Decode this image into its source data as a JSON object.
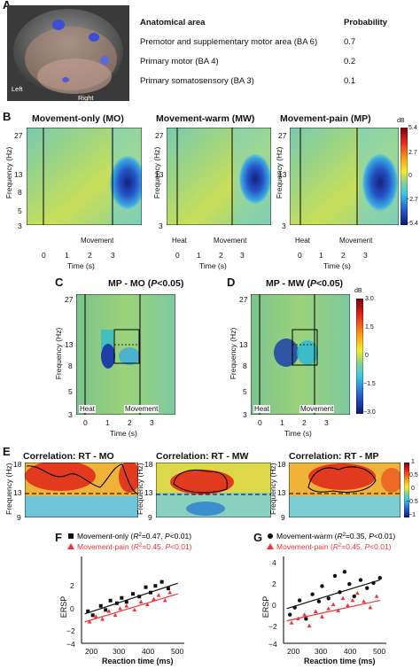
{
  "panel_a": {
    "label": "A",
    "brain_labels": {
      "left": "Left",
      "right": "Right"
    },
    "table": {
      "header_area": "Anatomical area",
      "header_prob": "Probability",
      "rows": [
        {
          "area": "Premotor and supplementary motor area (BA 6)",
          "prob": "0.7"
        },
        {
          "area": "Primary motor (BA 4)",
          "prob": "0.2"
        },
        {
          "area": "Primary somatosensory (BA 3)",
          "prob": "0.1"
        }
      ]
    }
  },
  "panel_b": {
    "label": "B",
    "titles": [
      "Movement-only (MO)",
      "Movement-warm (MW)",
      "Movement-pain (MP)"
    ],
    "ylabel": "Frequency (Hz)",
    "xlabel": "Time (s)",
    "yticks": [
      "27",
      "13",
      "8",
      "5",
      "3"
    ],
    "xticks": [
      "0",
      "1",
      "2",
      "3"
    ],
    "annotations": {
      "heat": "Heat",
      "movement": "Movement"
    },
    "colorbar": {
      "unit": "dB",
      "ticks": [
        "5.4",
        "2.7",
        "0",
        "−2.7",
        "−5.4"
      ]
    }
  },
  "panel_c": {
    "label": "C",
    "title_main": "MP - MO (",
    "title_p": "P",
    "title_rest": "<0.05)"
  },
  "panel_d": {
    "label": "D",
    "title_main": "MP - MW (",
    "title_p": "P",
    "title_rest": "<0.05)",
    "colorbar": {
      "unit": "dB",
      "ticks": [
        "3.0",
        "1.5",
        "0",
        "−1.5",
        "−3.0"
      ]
    }
  },
  "panel_e": {
    "label": "E",
    "titles": [
      "Correlation: RT - MO",
      "Correlation: RT - MW",
      "Correlation: RT - MP"
    ],
    "ylabel": "Frequency (Hz)",
    "yticks": [
      "18",
      "13",
      "9"
    ],
    "colorbar_ticks": [
      "1",
      "0.5",
      "0",
      "−0.5",
      "−1"
    ]
  },
  "panel_f": {
    "label": "F",
    "xlabel": "Reaction time (ms)",
    "ylabel": "ERSP",
    "xticks": [
      "200",
      "300",
      "400",
      "500"
    ],
    "yticks": [
      "2",
      "0",
      "−2",
      "−4"
    ]
  },
  "panel_g": {
    "label": "G",
    "xlabel": "Reaction time (ms)",
    "ylabel": "ERSP",
    "xticks": [
      "200",
      "300",
      "400",
      "500"
    ],
    "yticks": [
      "4",
      "2",
      "0",
      "−2",
      "−4"
    ]
  },
  "colors": {
    "black_series": "#111111",
    "red_series": "#e8383d",
    "hot": "#b3001b",
    "cold": "#1c2f8f"
  },
  "chart_data": [
    {
      "type": "scatter",
      "panel": "F",
      "xlabel": "Reaction time (ms)",
      "ylabel": "ERSP",
      "xlim": [
        180,
        500
      ],
      "ylim": [
        -4,
        2.5
      ],
      "series": [
        {
          "name": "Movement-only (R²=0.47, P<0.01)",
          "legend_main": "Movement-only (",
          "legend_stat": "R²=0.47, ",
          "legend_p": "P",
          "legend_tail": "<0.01)",
          "marker": "square",
          "color": "#111111",
          "x": [
            200,
            215,
            240,
            255,
            270,
            290,
            305,
            320,
            340,
            360,
            380,
            395,
            410,
            430,
            450
          ],
          "y": [
            -1.6,
            -1.9,
            -1.2,
            -1.5,
            -0.8,
            -1.0,
            -0.6,
            -0.9,
            -0.3,
            -0.5,
            0.2,
            -0.2,
            0.3,
            0.6,
            0.1
          ],
          "fit": [
            -1.8,
            0.5
          ]
        },
        {
          "name": "Movement-pain (R²=0.45, P<0.01)",
          "legend_main": "Movement-pain (",
          "legend_stat": "R²=0.45, ",
          "legend_p": "P",
          "legend_tail": "<0.01)",
          "marker": "triangle",
          "color": "#e8383d",
          "x": [
            205,
            225,
            245,
            265,
            285,
            300,
            320,
            345,
            365,
            385,
            405,
            420,
            440,
            455
          ],
          "y": [
            -2.4,
            -2.0,
            -2.2,
            -1.6,
            -1.9,
            -1.4,
            -1.2,
            -1.5,
            -0.9,
            -1.1,
            -0.7,
            -0.4,
            -0.8,
            -0.2
          ],
          "fit": [
            -2.4,
            -0.3
          ]
        }
      ]
    },
    {
      "type": "scatter",
      "panel": "G",
      "xlabel": "Reaction time (ms)",
      "ylabel": "ERSP",
      "xlim": [
        180,
        500
      ],
      "ylim": [
        -4,
        4.5
      ],
      "series": [
        {
          "name": "Movement-warm (R²=0.35, P<0.01)",
          "legend_main": "Movement-warm (",
          "legend_stat": "R²=0.35, ",
          "legend_p": "P",
          "legend_tail": "<0.01)",
          "marker": "circle",
          "color": "#111111",
          "x": [
            200,
            215,
            230,
            250,
            270,
            290,
            300,
            320,
            340,
            355,
            370,
            385,
            400,
            420,
            440,
            460,
            480
          ],
          "y": [
            -1.2,
            -0.5,
            0.2,
            -1.6,
            0.8,
            0.1,
            1.6,
            0.4,
            2.6,
            1.0,
            3.0,
            1.8,
            0.6,
            2.2,
            1.4,
            1.9,
            2.4
          ],
          "fit": [
            -0.6,
            2.2
          ]
        },
        {
          "name": "Movement-pain (R²=0.45, P<0.01)",
          "legend_main": "Movement-pain (",
          "legend_stat": "R²=0.45, ",
          "legend_p": "P",
          "legend_tail": "<0.01)",
          "marker": "triangle",
          "color": "#e8383d",
          "x": [
            205,
            225,
            245,
            260,
            280,
            300,
            320,
            335,
            350,
            365,
            380,
            395,
            410,
            430,
            450,
            470
          ],
          "y": [
            -2.0,
            -1.6,
            -1.2,
            -2.3,
            -0.9,
            -1.4,
            -0.6,
            -0.2,
            -0.8,
            0.4,
            -0.3,
            0.2,
            0.9,
            0.1,
            -0.5,
            0.6
          ],
          "fit": [
            -1.8,
            0.2
          ]
        }
      ]
    }
  ]
}
